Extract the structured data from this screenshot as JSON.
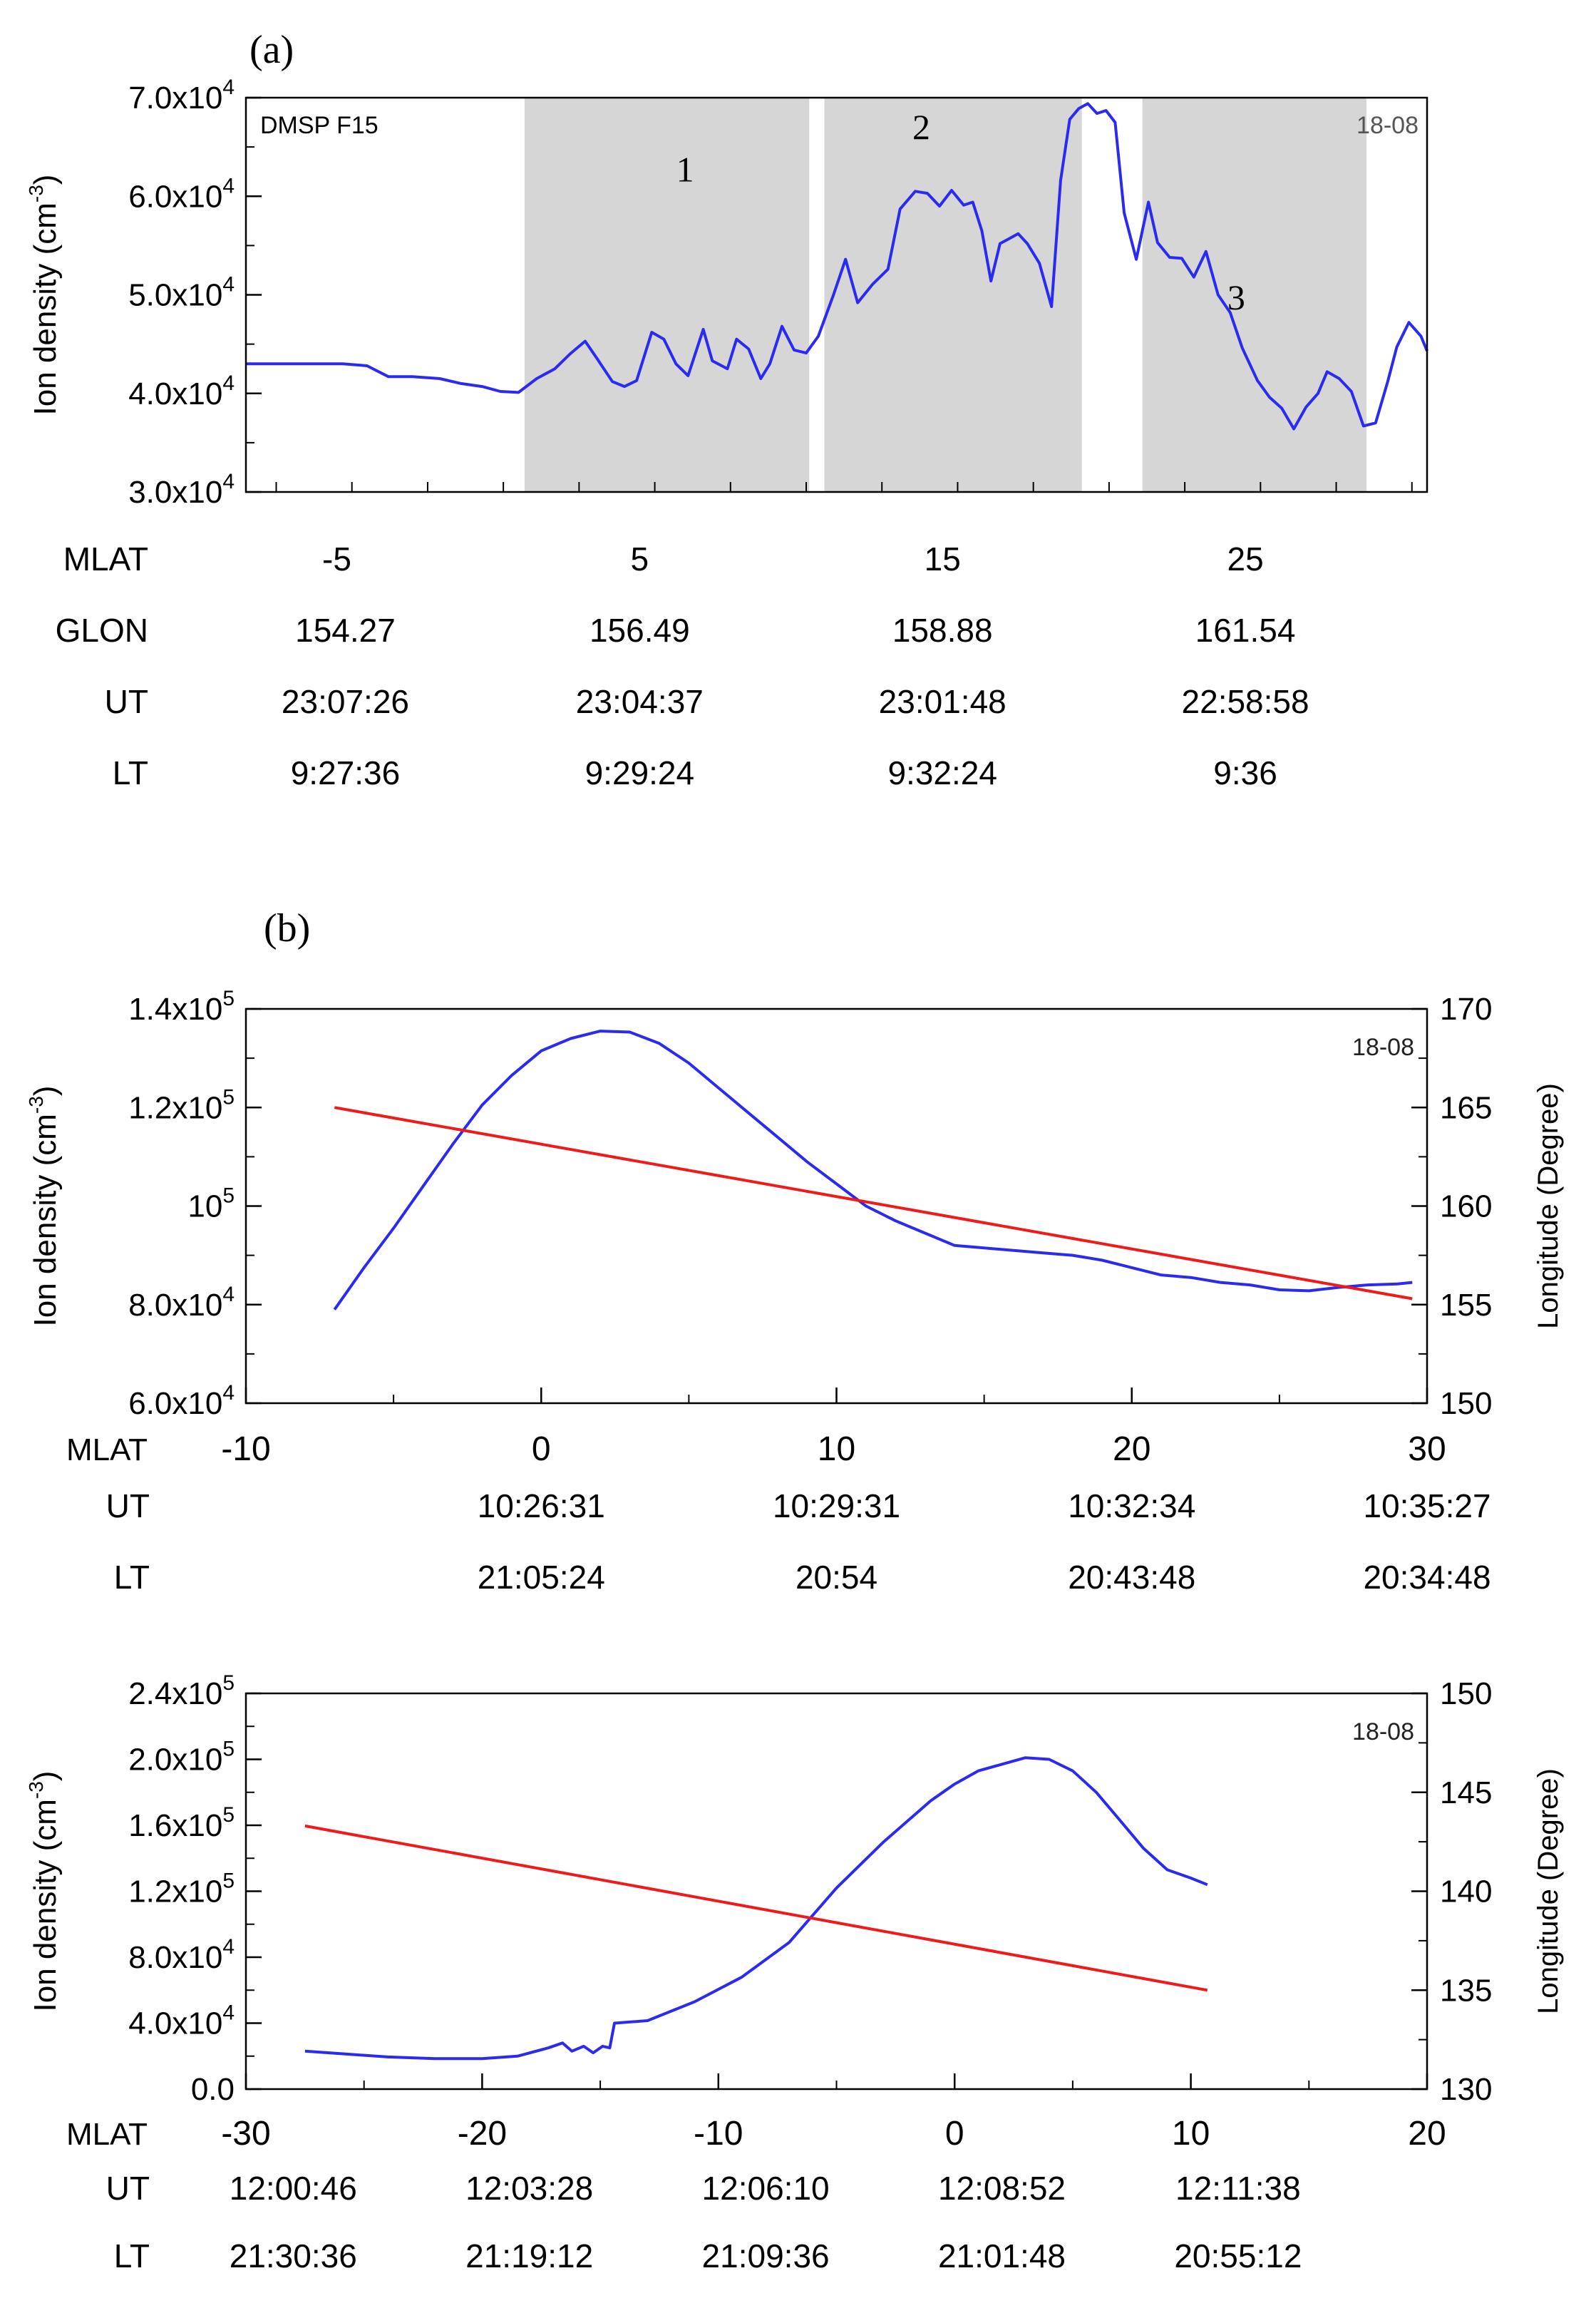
{
  "chart_data": [
    {
      "panel": "(a)",
      "type": "line",
      "title": "",
      "ylabel_main": "Ion density (cm",
      "ylabel_sup": "-3",
      "ylabel_close": ")",
      "xlim": [
        -8,
        31
      ],
      "ylim": [
        30000,
        70000
      ],
      "y_ticks": [
        {
          "value": 30000,
          "base": "3.0x10",
          "exp": "4"
        },
        {
          "value": 40000,
          "base": "4.0x10",
          "exp": "4"
        },
        {
          "value": 50000,
          "base": "5.0x10",
          "exp": "4"
        },
        {
          "value": 60000,
          "base": "6.0x10",
          "exp": "4"
        },
        {
          "value": 70000,
          "base": "7.0x10",
          "exp": "4"
        }
      ],
      "satellite_label": "DMSP F15",
      "date_label": "18-08",
      "shaded_regions": [
        {
          "label": "1",
          "x0": 1.2,
          "x1": 10.6,
          "label_x": 6.5,
          "label_y": 61500
        },
        {
          "label": "2",
          "x0": 11.1,
          "x1": 19.6,
          "label_x": 14.3,
          "label_y": 65800
        },
        {
          "label": "3",
          "x0": 21.6,
          "x1": 29.0,
          "label_x": 24.7,
          "label_y": 48500
        }
      ],
      "axis_rows": [
        {
          "name": "MLAT",
          "values": [
            {
              "x": -5,
              "text": "-5"
            },
            {
              "x": 5,
              "text": "5"
            },
            {
              "x": 15,
              "text": "15"
            },
            {
              "x": 25,
              "text": "25"
            }
          ]
        },
        {
          "name": "GLON",
          "values": [
            {
              "x": -5,
              "text": "154.27"
            },
            {
              "x": 5,
              "text": "156.49"
            },
            {
              "x": 15,
              "text": "158.88"
            },
            {
              "x": 25,
              "text": "161.54"
            }
          ]
        },
        {
          "name": "UT",
          "values": [
            {
              "x": -5,
              "text": "23:07:26"
            },
            {
              "x": 5,
              "text": "23:04:37"
            },
            {
              "x": 15,
              "text": "23:01:48"
            },
            {
              "x": 25,
              "text": "22:58:58"
            }
          ]
        },
        {
          "name": "LT",
          "values": [
            {
              "x": -5,
              "text": "9:27:36"
            },
            {
              "x": 5,
              "text": "9:29:24"
            },
            {
              "x": 15,
              "text": "9:32:24"
            },
            {
              "x": 25,
              "text": "9:36"
            }
          ]
        }
      ],
      "series": [
        {
          "name": "Ion density",
          "color": "#2b2bf0",
          "x": [
            -8,
            -6.5,
            -5.5,
            -4.8,
            -4.0,
            -3.3,
            -2.5,
            -1.6,
            -0.9,
            -0.2,
            0.4,
            1.0,
            1.6,
            2.2,
            2.7,
            3.2,
            3.6,
            4.1,
            4.5,
            4.9,
            5.4,
            5.8,
            6.2,
            6.6,
            7.1,
            7.4,
            7.9,
            8.2,
            8.6,
            9.0,
            9.3,
            9.7,
            10.1,
            10.5,
            10.9,
            11.4,
            11.8,
            12.2,
            12.7,
            13.2,
            13.6,
            14.1,
            14.5,
            14.9,
            15.3,
            15.7,
            16.0,
            16.3,
            16.6,
            16.9,
            17.2,
            17.5,
            17.8,
            18.2,
            18.6,
            18.9,
            19.2,
            19.5,
            19.8,
            20.1,
            20.4,
            20.7,
            21.0,
            21.4,
            21.8,
            22.1,
            22.5,
            22.9,
            23.3,
            23.7,
            24.1,
            24.5,
            24.9,
            25.4,
            25.8,
            26.2,
            26.6,
            27.0,
            27.4,
            27.7,
            28.1,
            28.5,
            28.9,
            29.3,
            29.7,
            30.0,
            30.4,
            30.8,
            31.0
          ],
          "y": [
            43000,
            43000,
            43000,
            43000,
            42800,
            41700,
            41700,
            41500,
            41000,
            40700,
            40200,
            40100,
            41500,
            42500,
            44000,
            45300,
            43500,
            41200,
            40700,
            41300,
            46200,
            45500,
            43000,
            41800,
            46500,
            43300,
            42500,
            45500,
            44500,
            41500,
            43000,
            46800,
            44400,
            44100,
            45800,
            50000,
            53600,
            49200,
            51100,
            52600,
            58700,
            60500,
            60300,
            59000,
            60600,
            59100,
            59400,
            56500,
            51400,
            55200,
            55700,
            56200,
            55200,
            53200,
            48800,
            61600,
            67800,
            68900,
            69400,
            68400,
            68700,
            67500,
            58300,
            53600,
            59400,
            55300,
            53800,
            53700,
            51800,
            54400,
            50000,
            48200,
            44600,
            41300,
            39600,
            38500,
            36400,
            38600,
            40000,
            42200,
            41500,
            40200,
            36700,
            37000,
            41200,
            44700,
            47200,
            45800,
            44300
          ]
        }
      ]
    },
    {
      "panel": "(b)",
      "type": "line",
      "title": "",
      "ylabel_main": "Ion density (cm",
      "ylabel_sup": "-3",
      "ylabel_close": ")",
      "y2label": "Longitude (Degree)",
      "xlabel": "MLAT",
      "xlim": [
        -10,
        30
      ],
      "ylim": [
        60000,
        140000
      ],
      "y2lim": [
        150,
        170
      ],
      "x_ticks": [
        -10,
        0,
        10,
        20,
        30
      ],
      "y_ticks": [
        {
          "value": 60000,
          "base": "6.0x10",
          "exp": "4"
        },
        {
          "value": 80000,
          "base": "8.0x10",
          "exp": "4"
        },
        {
          "value": 100000,
          "base": "10",
          "exp": "5"
        },
        {
          "value": 120000,
          "base": "1.2x10",
          "exp": "5"
        },
        {
          "value": 140000,
          "base": "1.4x10",
          "exp": "5"
        }
      ],
      "y2_ticks": [
        150,
        155,
        160,
        165,
        170
      ],
      "date_label": "18-08",
      "axis_rows": [
        {
          "name": "UT",
          "values": [
            {
              "x": 0,
              "text": "10:26:31"
            },
            {
              "x": 10,
              "text": "10:29:31"
            },
            {
              "x": 20,
              "text": "10:32:34"
            },
            {
              "x": 30,
              "text": "10:35:27"
            }
          ]
        },
        {
          "name": "LT",
          "values": [
            {
              "x": 0,
              "text": "21:05:24"
            },
            {
              "x": 10,
              "text": "20:54"
            },
            {
              "x": 20,
              "text": "20:43:48"
            },
            {
              "x": 30,
              "text": "20:34:48"
            }
          ]
        }
      ],
      "series": [
        {
          "name": "Ion density",
          "axis": "left",
          "color": "#2b2bf0",
          "x": [
            -7,
            -6,
            -5,
            -4,
            -3,
            -2,
            -1,
            0,
            1,
            2,
            3,
            4,
            5,
            6,
            7,
            8,
            9,
            10,
            11,
            12,
            13,
            14,
            15,
            16,
            17,
            18,
            19,
            20,
            21,
            22,
            23,
            24,
            25,
            26,
            27,
            28,
            29,
            29.5
          ],
          "y": [
            79000,
            87500,
            95500,
            104000,
            112500,
            120500,
            126500,
            131500,
            134000,
            135500,
            135300,
            133000,
            129000,
            124000,
            119000,
            114000,
            109000,
            104500,
            100000,
            97000,
            94500,
            92000,
            91500,
            91000,
            90500,
            90000,
            89000,
            87500,
            86000,
            85500,
            84500,
            84000,
            83000,
            82800,
            83500,
            84000,
            84200,
            84500
          ]
        },
        {
          "name": "Longitude",
          "axis": "right",
          "color": "#f01a1a",
          "x": [
            -7,
            29.5
          ],
          "y": [
            165.0,
            155.3
          ]
        }
      ]
    },
    {
      "panel": "(b) lower",
      "type": "line",
      "title": "",
      "ylabel_main": "Ion density (cm",
      "ylabel_sup": "-3",
      "ylabel_close": ")",
      "y2label": "Longitude (Degree)",
      "xlabel": "MLAT",
      "xlim": [
        -30,
        20
      ],
      "ylim": [
        0,
        240000
      ],
      "y2lim": [
        130,
        150
      ],
      "x_ticks": [
        -30,
        -20,
        -10,
        0,
        10,
        20
      ],
      "y_ticks": [
        {
          "value": 0,
          "base": "0.0",
          "exp": ""
        },
        {
          "value": 40000,
          "base": "4.0x10",
          "exp": "4"
        },
        {
          "value": 80000,
          "base": "8.0x10",
          "exp": "4"
        },
        {
          "value": 120000,
          "base": "1.2x10",
          "exp": "5"
        },
        {
          "value": 160000,
          "base": "1.6x10",
          "exp": "5"
        },
        {
          "value": 200000,
          "base": "2.0x10",
          "exp": "5"
        },
        {
          "value": 240000,
          "base": "2.4x10",
          "exp": "5"
        }
      ],
      "y2_ticks": [
        130,
        135,
        140,
        145,
        150
      ],
      "date_label": "18-08",
      "axis_rows": [
        {
          "name": "UT",
          "values": [
            {
              "x": -28,
              "text": "12:00:46"
            },
            {
              "x": -18,
              "text": "12:03:28"
            },
            {
              "x": -8,
              "text": "12:06:10"
            },
            {
              "x": 2,
              "text": "12:08:52"
            },
            {
              "x": 12,
              "text": "12:11:38"
            }
          ]
        },
        {
          "name": "LT",
          "values": [
            {
              "x": -28,
              "text": "21:30:36"
            },
            {
              "x": -18,
              "text": "21:19:12"
            },
            {
              "x": -8,
              "text": "21:09:36"
            },
            {
              "x": 2,
              "text": "21:01:48"
            },
            {
              "x": 12,
              "text": "20:55:12"
            }
          ]
        }
      ],
      "series": [
        {
          "name": "Ion density",
          "axis": "left",
          "color": "#2b2bf0",
          "x": [
            -27.5,
            -26,
            -24,
            -22,
            -20,
            -18.5,
            -17.2,
            -16.6,
            -16.2,
            -15.7,
            -15.3,
            -14.9,
            -14.6,
            -14.4,
            -13,
            -11,
            -9,
            -7,
            -5,
            -3,
            -1,
            0,
            1,
            2,
            3,
            4,
            5,
            6,
            7,
            8,
            9,
            10,
            10.7
          ],
          "y": [
            23000,
            21500,
            19500,
            18500,
            18500,
            20000,
            25000,
            28000,
            23000,
            26000,
            22000,
            26000,
            25000,
            40000,
            41500,
            53000,
            68000,
            89000,
            122000,
            150000,
            175000,
            185000,
            193000,
            197000,
            201000,
            200000,
            193000,
            180000,
            163000,
            146000,
            133000,
            128000,
            124000
          ]
        },
        {
          "name": "Longitude",
          "axis": "right",
          "color": "#f01a1a",
          "x": [
            -27.5,
            10.7
          ],
          "y": [
            143.3,
            135.0
          ]
        }
      ]
    }
  ]
}
